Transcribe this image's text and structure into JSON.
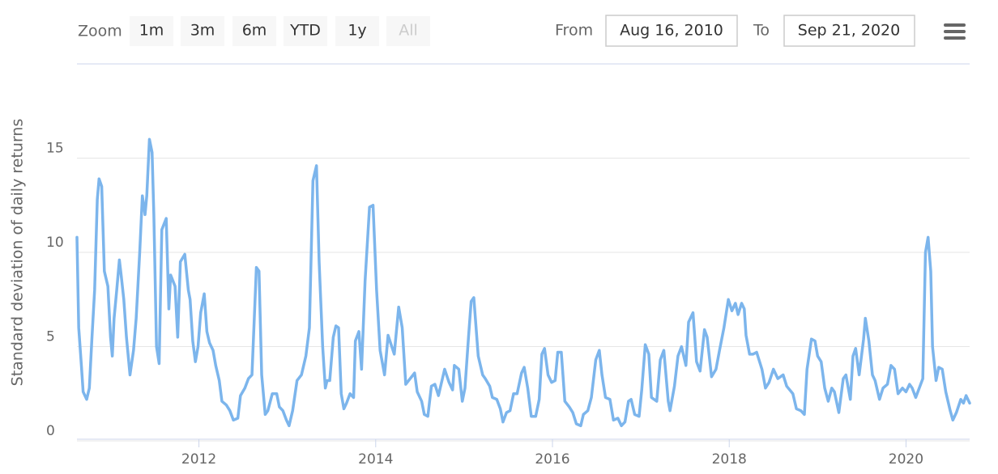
{
  "range_selector": {
    "zoom_label": "Zoom",
    "buttons": [
      {
        "label": "1m",
        "enabled": true
      },
      {
        "label": "3m",
        "enabled": true
      },
      {
        "label": "6m",
        "enabled": true
      },
      {
        "label": "YTD",
        "enabled": true
      },
      {
        "label": "1y",
        "enabled": true
      },
      {
        "label": "All",
        "enabled": false
      }
    ],
    "from_label": "From",
    "from": "Aug 16, 2010",
    "to_label": "To",
    "to": "Sep 21, 2020"
  },
  "chart_data": {
    "type": "line",
    "y_axis_title": "Standard deviation of daily returns",
    "color": "#7cb5ec",
    "grid": true,
    "xlim": [
      2010.62,
      2020.72
    ],
    "xticks": [
      2012,
      2014,
      2016,
      2018,
      2020
    ],
    "ylim": [
      0,
      20
    ],
    "yticks": [
      0,
      5,
      10,
      15
    ],
    "x": [
      2010.62,
      2010.64,
      2010.67,
      2010.69,
      2010.73,
      2010.76,
      2010.79,
      2010.82,
      2010.85,
      2010.87,
      2010.9,
      2010.93,
      2010.97,
      2011.0,
      2011.02,
      2011.04,
      2011.07,
      2011.1,
      2011.12,
      2011.15,
      2011.18,
      2011.22,
      2011.26,
      2011.29,
      2011.33,
      2011.36,
      2011.39,
      2011.41,
      2011.44,
      2011.47,
      2011.49,
      2011.52,
      2011.55,
      2011.58,
      2011.63,
      2011.66,
      2011.68,
      2011.73,
      2011.76,
      2011.79,
      2011.84,
      2011.88,
      2011.9,
      2011.93,
      2011.96,
      2011.99,
      2012.02,
      2012.06,
      2012.09,
      2012.12,
      2012.16,
      2012.19,
      2012.23,
      2012.26,
      2012.31,
      2012.35,
      2012.39,
      2012.44,
      2012.47,
      2012.52,
      2012.56,
      2012.6,
      2012.65,
      2012.68,
      2012.71,
      2012.75,
      2012.78,
      2012.83,
      2012.88,
      2012.91,
      2012.95,
      2012.99,
      2013.02,
      2013.06,
      2013.11,
      2013.16,
      2013.21,
      2013.25,
      2013.29,
      2013.33,
      2013.36,
      2013.4,
      2013.43,
      2013.45,
      2013.48,
      2013.52,
      2013.55,
      2013.58,
      2013.61,
      2013.64,
      2013.67,
      2013.71,
      2013.75,
      2013.77,
      2013.81,
      2013.84,
      2013.88,
      2013.93,
      2013.97,
      2014.01,
      2014.05,
      2014.1,
      2014.14,
      2014.21,
      2014.26,
      2014.3,
      2014.34,
      2014.39,
      2014.44,
      2014.47,
      2014.52,
      2014.55,
      2014.59,
      2014.63,
      2014.67,
      2014.71,
      2014.76,
      2014.78,
      2014.83,
      2014.87,
      2014.89,
      2014.94,
      2014.98,
      2015.01,
      2015.05,
      2015.08,
      2015.11,
      2015.16,
      2015.21,
      2015.24,
      2015.29,
      2015.32,
      2015.37,
      2015.41,
      2015.44,
      2015.48,
      2015.52,
      2015.56,
      2015.6,
      2015.65,
      2015.68,
      2015.72,
      2015.76,
      2015.81,
      2015.85,
      2015.88,
      2015.91,
      2015.95,
      2015.99,
      2016.03,
      2016.06,
      2016.1,
      2016.14,
      2016.19,
      2016.23,
      2016.27,
      2016.32,
      2016.35,
      2016.4,
      2016.44,
      2016.49,
      2016.53,
      2016.56,
      2016.6,
      2016.65,
      2016.69,
      2016.74,
      2016.78,
      2016.82,
      2016.86,
      2016.89,
      2016.93,
      2016.98,
      2017.01,
      2017.05,
      2017.09,
      2017.12,
      2017.18,
      2017.22,
      2017.26,
      2017.31,
      2017.33,
      2017.38,
      2017.42,
      2017.46,
      2017.51,
      2017.54,
      2017.59,
      2017.63,
      2017.67,
      2017.72,
      2017.75,
      2017.8,
      2017.85,
      2017.89,
      2017.94,
      2017.99,
      2018.03,
      2018.07,
      2018.1,
      2018.14,
      2018.17,
      2018.19,
      2018.23,
      2018.27,
      2018.31,
      2018.37,
      2018.41,
      2018.45,
      2018.5,
      2018.55,
      2018.61,
      2018.65,
      2018.72,
      2018.76,
      2018.81,
      2018.85,
      2018.88,
      2018.93,
      2018.97,
      2019.0,
      2019.04,
      2019.08,
      2019.12,
      2019.16,
      2019.19,
      2019.24,
      2019.29,
      2019.32,
      2019.37,
      2019.4,
      2019.43,
      2019.47,
      2019.52,
      2019.54,
      2019.58,
      2019.62,
      2019.65,
      2019.7,
      2019.74,
      2019.79,
      2019.83,
      2019.87,
      2019.91,
      2019.96,
      2020.0,
      2020.04,
      2020.07,
      2020.11,
      2020.15,
      2020.19,
      2020.22,
      2020.25,
      2020.28,
      2020.3,
      2020.34,
      2020.37,
      2020.41,
      2020.45,
      2020.5,
      2020.53,
      2020.57,
      2020.62,
      2020.65,
      2020.68,
      2020.72
    ],
    "values": [
      10.8,
      6,
      4,
      2.6,
      2.2,
      2.8,
      5.5,
      8,
      12.8,
      13.9,
      13.5,
      9,
      8.2,
      5.5,
      4.5,
      6.5,
      8,
      9.6,
      8.8,
      7.5,
      5.5,
      3.5,
      4.8,
      6.5,
      10,
      13,
      12,
      13,
      16,
      15.3,
      12,
      5,
      4.1,
      11.2,
      11.8,
      7,
      8.8,
      8.2,
      5.5,
      9.5,
      9.9,
      8,
      7.5,
      5.3,
      4.2,
      5,
      6.8,
      7.8,
      5.8,
      5.2,
      4.8,
      4,
      3.2,
      2.1,
      1.9,
      1.6,
      1.1,
      1.2,
      2.4,
      2.8,
      3.3,
      3.5,
      9.2,
      9,
      3.5,
      1.4,
      1.6,
      2.5,
      2.5,
      1.8,
      1.6,
      1.1,
      0.8,
      1.6,
      3.2,
      3.5,
      4.5,
      6,
      13.8,
      14.6,
      9.5,
      5,
      2.8,
      3.2,
      3.2,
      5.5,
      6.1,
      6,
      2.5,
      1.7,
      2,
      2.5,
      2.3,
      5.3,
      5.8,
      3.8,
      8.5,
      12.4,
      12.5,
      8,
      4.8,
      3.5,
      5.6,
      4.6,
      7.1,
      6,
      3,
      3.3,
      3.6,
      2.6,
      2.1,
      1.4,
      1.3,
      2.9,
      3,
      2.4,
      3.4,
      3.8,
      3.1,
      2.7,
      4,
      3.8,
      2.1,
      2.8,
      5.5,
      7.4,
      7.6,
      4.5,
      3.5,
      3.3,
      2.9,
      2.3,
      2.2,
      1.7,
      1,
      1.5,
      1.6,
      2.5,
      2.5,
      3.6,
      3.9,
      2.8,
      1.3,
      1.3,
      2.2,
      4.6,
      4.9,
      3.5,
      3.1,
      3.2,
      4.7,
      4.7,
      2.1,
      1.8,
      1.5,
      0.9,
      0.8,
      1.4,
      1.6,
      2.3,
      4.3,
      4.8,
      3.5,
      2.3,
      2.2,
      1.1,
      1.2,
      0.8,
      1,
      2.1,
      2.2,
      1.4,
      1.3,
      2.7,
      5.1,
      4.6,
      2.3,
      2.1,
      4.3,
      4.8,
      2.1,
      1.6,
      2.9,
      4.5,
      5,
      4,
      6.3,
      6.8,
      4.2,
      3.7,
      5.9,
      5.5,
      3.4,
      3.8,
      4.8,
      6,
      7.5,
      6.9,
      7.3,
      6.7,
      7.3,
      7,
      5.6,
      4.6,
      4.6,
      4.7,
      3.8,
      2.8,
      3.1,
      3.8,
      3.3,
      3.5,
      2.9,
      2.5,
      1.7,
      1.6,
      1.4,
      3.8,
      5.4,
      5.3,
      4.5,
      4.2,
      2.8,
      2.1,
      2.8,
      2.6,
      1.5,
      3.3,
      3.5,
      2.2,
      4.5,
      4.9,
      3.5,
      5.4,
      6.5,
      5.3,
      3.5,
      3.2,
      2.2,
      2.8,
      3,
      4,
      3.8,
      2.5,
      2.8,
      2.6,
      3,
      2.8,
      2.3,
      2.8,
      3.3,
      10,
      10.8,
      9,
      5,
      3.2,
      3.9,
      3.8,
      2.6,
      1.6,
      1.1,
      1.5,
      2.2,
      2,
      2.4,
      2
    ]
  }
}
